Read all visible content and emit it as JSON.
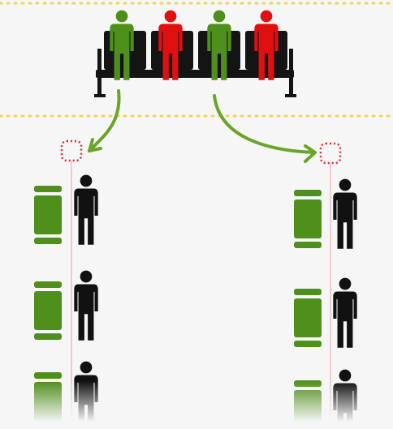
{
  "colors": {
    "background": "#f6f6f6",
    "divider": "#f3d35b",
    "green": "#4f8f1c",
    "green_light": "#6fae2f",
    "red": "#e01010",
    "black": "#111111",
    "chair": "#141414",
    "arrow": "#6aa52a",
    "target": "#d93030",
    "line": "#e6b4b4"
  },
  "diagram": {
    "bench": {
      "name": "waiting-bench",
      "icon": "bench-icon",
      "seated_people": [
        "green",
        "red",
        "green",
        "red"
      ]
    },
    "arrows": [
      {
        "name": "arrow-to-left-queue",
        "from_person": 1,
        "to_queue": "left"
      },
      {
        "name": "arrow-to-right-queue",
        "from_person": 3,
        "to_queue": "right"
      }
    ],
    "queues": [
      {
        "name": "left-queue",
        "people": 3,
        "counters": 3
      },
      {
        "name": "right-queue",
        "people": 3,
        "counters": 3
      }
    ]
  }
}
